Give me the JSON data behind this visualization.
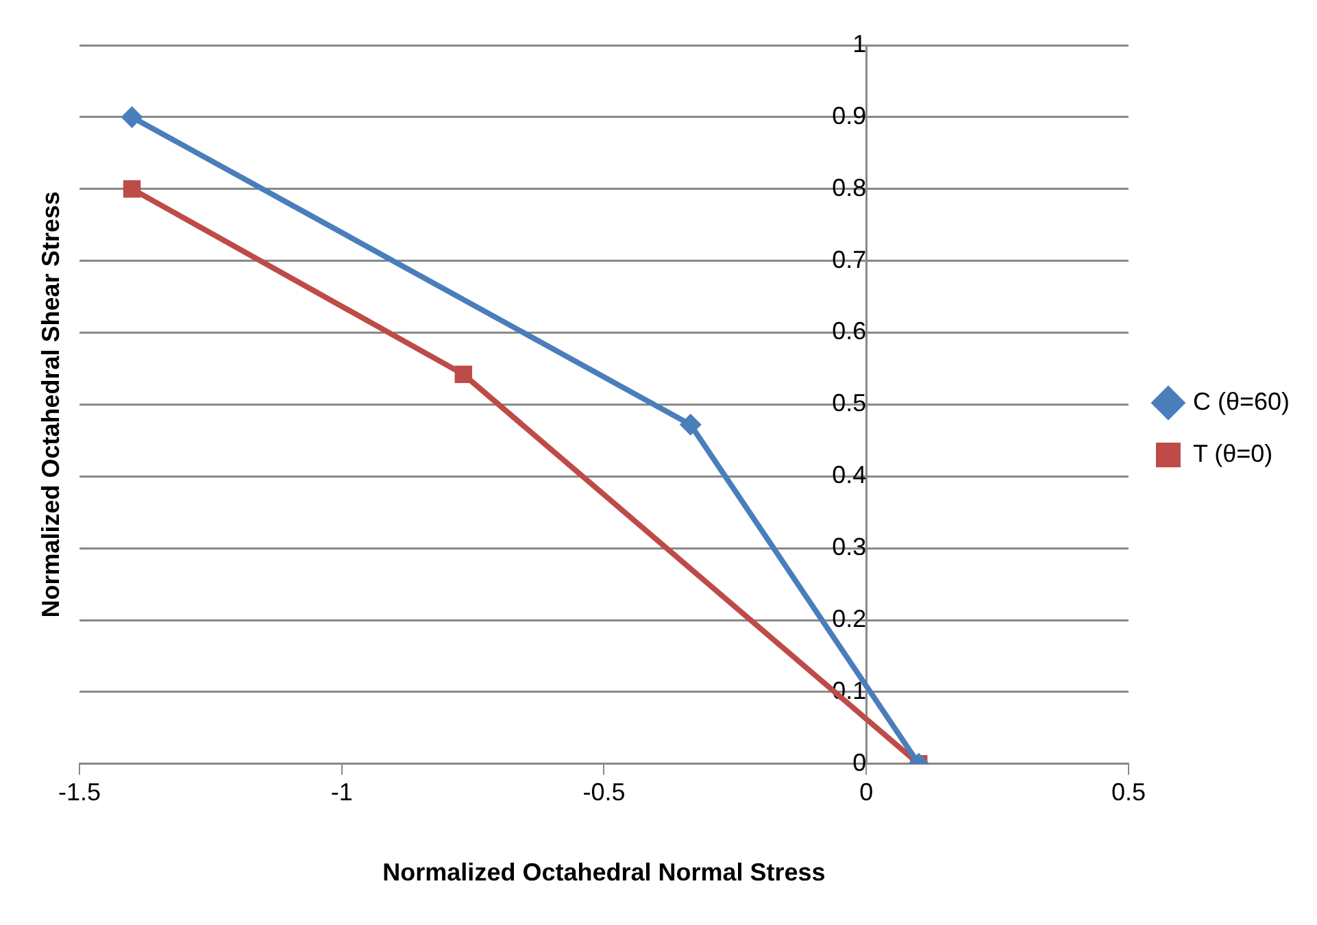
{
  "chart_data": {
    "type": "line",
    "xlabel": "Normalized Octahedral Normal Stress",
    "ylabel": "Normalized Octahedral Shear Stress",
    "xlim": [
      -1.5,
      0.5
    ],
    "xticks": [
      -1.5,
      -1,
      -0.5,
      0,
      0.5
    ],
    "ylim": [
      0,
      1
    ],
    "yticks": [
      0,
      0.1,
      0.2,
      0.3,
      0.4,
      0.5,
      0.6,
      0.7,
      0.8,
      0.9,
      1
    ],
    "grid": "y",
    "legend": "right",
    "line_style": "solid",
    "series": [
      {
        "name": "C (θ=60)",
        "color": "#4a7ebb",
        "marker": "diamond",
        "x": [
          -1.4,
          -0.335,
          0.1
        ],
        "values": [
          0.9,
          0.472,
          0
        ]
      },
      {
        "name": "T (θ=0)",
        "color": "#be4b48",
        "marker": "square",
        "x": [
          -1.4,
          -0.768,
          0.1
        ],
        "values": [
          0.8,
          0.542,
          0
        ]
      }
    ]
  }
}
